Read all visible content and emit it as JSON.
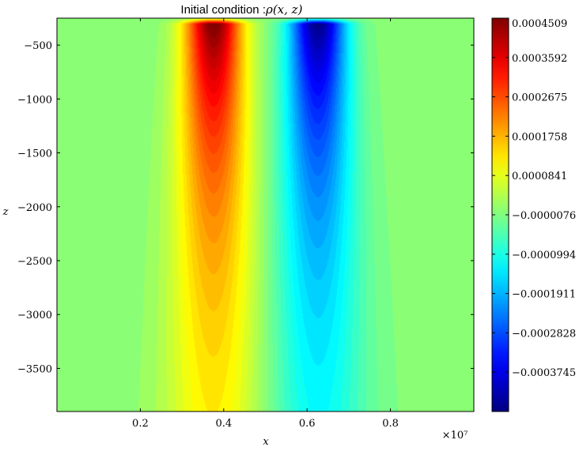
{
  "chart_data": {
    "type": "heatmap",
    "subtype": "filled-contour",
    "title_prefix": "Initial condition : ",
    "title_math": "ρ(x, z)",
    "xlabel": "x",
    "ylabel": "z",
    "x_multiplier_label": "×10⁷",
    "xlim": [
      0.0,
      1.0
    ],
    "ylim": [
      -3900,
      -250
    ],
    "xticks": [
      0.2,
      0.4,
      0.6,
      0.8
    ],
    "xtick_labels": [
      "0.2",
      "0.4",
      "0.6",
      "0.8"
    ],
    "yticks": [
      -500,
      -1000,
      -1500,
      -2000,
      -2500,
      -3000,
      -3500
    ],
    "ytick_labels": [
      "−500",
      "−1000",
      "−1500",
      "−2000",
      "−2500",
      "−3000",
      "−3500"
    ],
    "colorbar": {
      "vmin": -0.0004662,
      "vmax": 0.0004509,
      "colormap": "jet",
      "ticks": [
        0.0004509,
        0.0003592,
        0.0002675,
        0.0001758,
        8.41e-05,
        -7.6e-06,
        -9.94e-05,
        -0.0001911,
        -0.0002828,
        -0.0003745
      ],
      "tick_labels": [
        "0.0004509",
        "0.0003592",
        "0.0002675",
        "0.0001758",
        "0.0000841",
        "−0.0000076",
        "−0.0000994",
        "−0.0001911",
        "−0.0002828",
        "−0.0003745"
      ]
    },
    "field": {
      "description_of_pattern": "positive lobe centered near x=0.375, negative lobe centered near x=0.625, maxima at the top (z≈-300), decaying with depth",
      "positive_center_x": 0.375,
      "negative_center_x": 0.625,
      "peak_z": -300,
      "amplitude": 0.00046
    }
  }
}
